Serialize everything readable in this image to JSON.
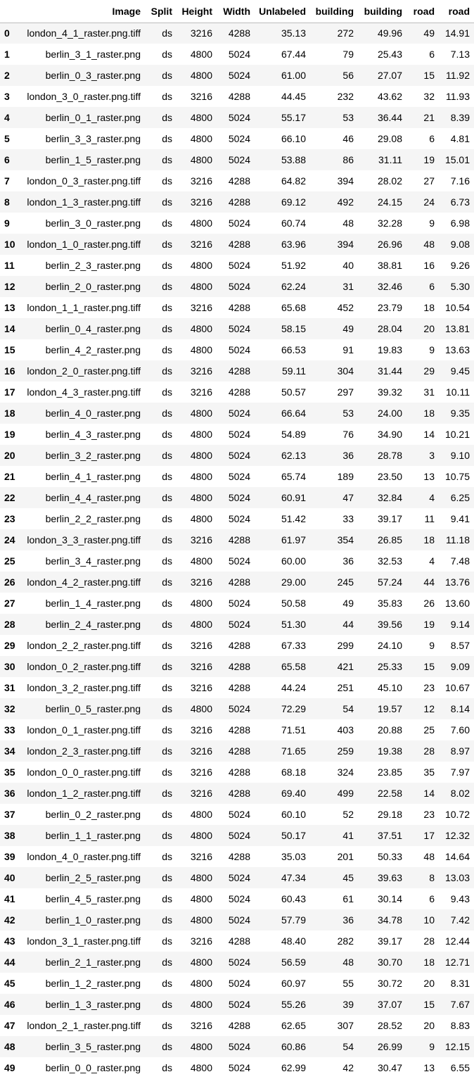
{
  "table": {
    "columns": [
      "",
      "Image",
      "Split",
      "Height",
      "Width",
      "Unlabeled",
      "building",
      "building",
      "road",
      "road"
    ],
    "rows": [
      [
        "0",
        "london_4_1_raster.png.tiff",
        "ds",
        "3216",
        "4288",
        "35.13",
        "272",
        "49.96",
        "49",
        "14.91"
      ],
      [
        "1",
        "berlin_3_1_raster.png",
        "ds",
        "4800",
        "5024",
        "67.44",
        "79",
        "25.43",
        "6",
        "7.13"
      ],
      [
        "2",
        "berlin_0_3_raster.png",
        "ds",
        "4800",
        "5024",
        "61.00",
        "56",
        "27.07",
        "15",
        "11.92"
      ],
      [
        "3",
        "london_3_0_raster.png.tiff",
        "ds",
        "3216",
        "4288",
        "44.45",
        "232",
        "43.62",
        "32",
        "11.93"
      ],
      [
        "4",
        "berlin_0_1_raster.png",
        "ds",
        "4800",
        "5024",
        "55.17",
        "53",
        "36.44",
        "21",
        "8.39"
      ],
      [
        "5",
        "berlin_3_3_raster.png",
        "ds",
        "4800",
        "5024",
        "66.10",
        "46",
        "29.08",
        "6",
        "4.81"
      ],
      [
        "6",
        "berlin_1_5_raster.png",
        "ds",
        "4800",
        "5024",
        "53.88",
        "86",
        "31.11",
        "19",
        "15.01"
      ],
      [
        "7",
        "london_0_3_raster.png.tiff",
        "ds",
        "3216",
        "4288",
        "64.82",
        "394",
        "28.02",
        "27",
        "7.16"
      ],
      [
        "8",
        "london_1_3_raster.png.tiff",
        "ds",
        "3216",
        "4288",
        "69.12",
        "492",
        "24.15",
        "24",
        "6.73"
      ],
      [
        "9",
        "berlin_3_0_raster.png",
        "ds",
        "4800",
        "5024",
        "60.74",
        "48",
        "32.28",
        "9",
        "6.98"
      ],
      [
        "10",
        "london_1_0_raster.png.tiff",
        "ds",
        "3216",
        "4288",
        "63.96",
        "394",
        "26.96",
        "48",
        "9.08"
      ],
      [
        "11",
        "berlin_2_3_raster.png",
        "ds",
        "4800",
        "5024",
        "51.92",
        "40",
        "38.81",
        "16",
        "9.26"
      ],
      [
        "12",
        "berlin_2_0_raster.png",
        "ds",
        "4800",
        "5024",
        "62.24",
        "31",
        "32.46",
        "6",
        "5.30"
      ],
      [
        "13",
        "london_1_1_raster.png.tiff",
        "ds",
        "3216",
        "4288",
        "65.68",
        "452",
        "23.79",
        "18",
        "10.54"
      ],
      [
        "14",
        "berlin_0_4_raster.png",
        "ds",
        "4800",
        "5024",
        "58.15",
        "49",
        "28.04",
        "20",
        "13.81"
      ],
      [
        "15",
        "berlin_4_2_raster.png",
        "ds",
        "4800",
        "5024",
        "66.53",
        "91",
        "19.83",
        "9",
        "13.63"
      ],
      [
        "16",
        "london_2_0_raster.png.tiff",
        "ds",
        "3216",
        "4288",
        "59.11",
        "304",
        "31.44",
        "29",
        "9.45"
      ],
      [
        "17",
        "london_4_3_raster.png.tiff",
        "ds",
        "3216",
        "4288",
        "50.57",
        "297",
        "39.32",
        "31",
        "10.11"
      ],
      [
        "18",
        "berlin_4_0_raster.png",
        "ds",
        "4800",
        "5024",
        "66.64",
        "53",
        "24.00",
        "18",
        "9.35"
      ],
      [
        "19",
        "berlin_4_3_raster.png",
        "ds",
        "4800",
        "5024",
        "54.89",
        "76",
        "34.90",
        "14",
        "10.21"
      ],
      [
        "20",
        "berlin_3_2_raster.png",
        "ds",
        "4800",
        "5024",
        "62.13",
        "36",
        "28.78",
        "3",
        "9.10"
      ],
      [
        "21",
        "berlin_4_1_raster.png",
        "ds",
        "4800",
        "5024",
        "65.74",
        "189",
        "23.50",
        "13",
        "10.75"
      ],
      [
        "22",
        "berlin_4_4_raster.png",
        "ds",
        "4800",
        "5024",
        "60.91",
        "47",
        "32.84",
        "4",
        "6.25"
      ],
      [
        "23",
        "berlin_2_2_raster.png",
        "ds",
        "4800",
        "5024",
        "51.42",
        "33",
        "39.17",
        "11",
        "9.41"
      ],
      [
        "24",
        "london_3_3_raster.png.tiff",
        "ds",
        "3216",
        "4288",
        "61.97",
        "354",
        "26.85",
        "18",
        "11.18"
      ],
      [
        "25",
        "berlin_3_4_raster.png",
        "ds",
        "4800",
        "5024",
        "60.00",
        "36",
        "32.53",
        "4",
        "7.48"
      ],
      [
        "26",
        "london_4_2_raster.png.tiff",
        "ds",
        "3216",
        "4288",
        "29.00",
        "245",
        "57.24",
        "44",
        "13.76"
      ],
      [
        "27",
        "berlin_1_4_raster.png",
        "ds",
        "4800",
        "5024",
        "50.58",
        "49",
        "35.83",
        "26",
        "13.60"
      ],
      [
        "28",
        "berlin_2_4_raster.png",
        "ds",
        "4800",
        "5024",
        "51.30",
        "44",
        "39.56",
        "19",
        "9.14"
      ],
      [
        "29",
        "london_2_2_raster.png.tiff",
        "ds",
        "3216",
        "4288",
        "67.33",
        "299",
        "24.10",
        "9",
        "8.57"
      ],
      [
        "30",
        "london_0_2_raster.png.tiff",
        "ds",
        "3216",
        "4288",
        "65.58",
        "421",
        "25.33",
        "15",
        "9.09"
      ],
      [
        "31",
        "london_3_2_raster.png.tiff",
        "ds",
        "3216",
        "4288",
        "44.24",
        "251",
        "45.10",
        "23",
        "10.67"
      ],
      [
        "32",
        "berlin_0_5_raster.png",
        "ds",
        "4800",
        "5024",
        "72.29",
        "54",
        "19.57",
        "12",
        "8.14"
      ],
      [
        "33",
        "london_0_1_raster.png.tiff",
        "ds",
        "3216",
        "4288",
        "71.51",
        "403",
        "20.88",
        "25",
        "7.60"
      ],
      [
        "34",
        "london_2_3_raster.png.tiff",
        "ds",
        "3216",
        "4288",
        "71.65",
        "259",
        "19.38",
        "28",
        "8.97"
      ],
      [
        "35",
        "london_0_0_raster.png.tiff",
        "ds",
        "3216",
        "4288",
        "68.18",
        "324",
        "23.85",
        "35",
        "7.97"
      ],
      [
        "36",
        "london_1_2_raster.png.tiff",
        "ds",
        "3216",
        "4288",
        "69.40",
        "499",
        "22.58",
        "14",
        "8.02"
      ],
      [
        "37",
        "berlin_0_2_raster.png",
        "ds",
        "4800",
        "5024",
        "60.10",
        "52",
        "29.18",
        "23",
        "10.72"
      ],
      [
        "38",
        "berlin_1_1_raster.png",
        "ds",
        "4800",
        "5024",
        "50.17",
        "41",
        "37.51",
        "17",
        "12.32"
      ],
      [
        "39",
        "london_4_0_raster.png.tiff",
        "ds",
        "3216",
        "4288",
        "35.03",
        "201",
        "50.33",
        "48",
        "14.64"
      ],
      [
        "40",
        "berlin_2_5_raster.png",
        "ds",
        "4800",
        "5024",
        "47.34",
        "45",
        "39.63",
        "8",
        "13.03"
      ],
      [
        "41",
        "berlin_4_5_raster.png",
        "ds",
        "4800",
        "5024",
        "60.43",
        "61",
        "30.14",
        "6",
        "9.43"
      ],
      [
        "42",
        "berlin_1_0_raster.png",
        "ds",
        "4800",
        "5024",
        "57.79",
        "36",
        "34.78",
        "10",
        "7.42"
      ],
      [
        "43",
        "london_3_1_raster.png.tiff",
        "ds",
        "3216",
        "4288",
        "48.40",
        "282",
        "39.17",
        "28",
        "12.44"
      ],
      [
        "44",
        "berlin_2_1_raster.png",
        "ds",
        "4800",
        "5024",
        "56.59",
        "48",
        "30.70",
        "18",
        "12.71"
      ],
      [
        "45",
        "berlin_1_2_raster.png",
        "ds",
        "4800",
        "5024",
        "60.97",
        "55",
        "30.72",
        "20",
        "8.31"
      ],
      [
        "46",
        "berlin_1_3_raster.png",
        "ds",
        "4800",
        "5024",
        "55.26",
        "39",
        "37.07",
        "15",
        "7.67"
      ],
      [
        "47",
        "london_2_1_raster.png.tiff",
        "ds",
        "3216",
        "4288",
        "62.65",
        "307",
        "28.52",
        "20",
        "8.83"
      ],
      [
        "48",
        "berlin_3_5_raster.png",
        "ds",
        "4800",
        "5024",
        "60.86",
        "54",
        "26.99",
        "9",
        "12.15"
      ],
      [
        "49",
        "berlin_0_0_raster.png",
        "ds",
        "4800",
        "5024",
        "62.99",
        "42",
        "30.47",
        "13",
        "6.55"
      ]
    ]
  }
}
